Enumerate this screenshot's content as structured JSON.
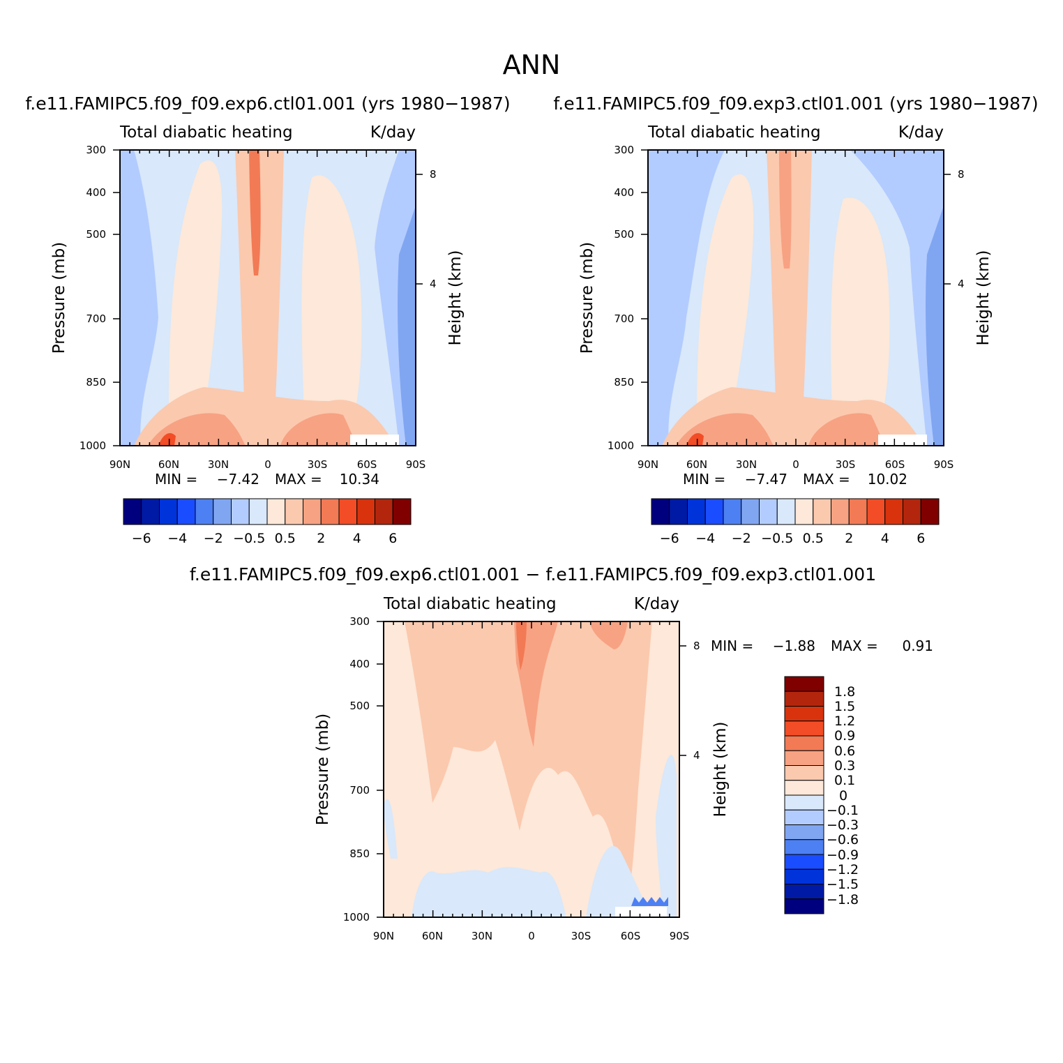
{
  "page_title": "ANN",
  "colors": {
    "panel_colorbar": [
      "#00007f",
      "#001aa6",
      "#0033d9",
      "#1a4dff",
      "#4d80f2",
      "#80a6f2",
      "#b3ccff",
      "#d9e8fa",
      "#fde8d9",
      "#fbc9ae",
      "#f7a283",
      "#f27a55",
      "#f24d26",
      "#d9330d",
      "#b3260d",
      "#800000"
    ],
    "diff_colorbar": [
      "#00007f",
      "#001aa6",
      "#0033d9",
      "#1a4dff",
      "#4d80f2",
      "#80a6f2",
      "#b3ccff",
      "#d9e8fa",
      "#fde8d9",
      "#fbc9ae",
      "#f7a283",
      "#f27a55",
      "#f24d26",
      "#d9330d",
      "#b3260d",
      "#800000"
    ]
  },
  "chart_data": [
    {
      "type": "heatmap",
      "title": "f.e11.FAMIPC5.f09_f09.exp6.ctl01.001 (yrs 1980−1987)",
      "subtitle_left": "Total diabatic heating",
      "subtitle_right": "K/day",
      "xlabel": "",
      "ylabel": "Pressure (mb)",
      "ylabel_right": "Height (km)",
      "x_ticks": [
        "90N",
        "60N",
        "30N",
        "0",
        "30S",
        "60S",
        "90S"
      ],
      "y_ticks": [
        "300",
        "400",
        "500",
        "700",
        "850",
        "1000"
      ],
      "y_ticks_right": [
        "8",
        "4"
      ],
      "min_label": "MIN =",
      "min_value": "−7.42",
      "max_label": "MAX =",
      "max_value": "10.34",
      "colorbar_labels": [
        "−6",
        "−4",
        "−2",
        "−0.5",
        "0.5",
        "2",
        "4",
        "6"
      ]
    },
    {
      "type": "heatmap",
      "title": "f.e11.FAMIPC5.f09_f09.exp3.ctl01.001 (yrs 1980−1987)",
      "subtitle_left": "Total diabatic heating",
      "subtitle_right": "K/day",
      "xlabel": "",
      "ylabel": "Pressure (mb)",
      "ylabel_right": "Height (km)",
      "x_ticks": [
        "90N",
        "60N",
        "30N",
        "0",
        "30S",
        "60S",
        "90S"
      ],
      "y_ticks": [
        "300",
        "400",
        "500",
        "700",
        "850",
        "1000"
      ],
      "y_ticks_right": [
        "8",
        "4"
      ],
      "min_label": "MIN =",
      "min_value": "−7.47",
      "max_label": "MAX =",
      "max_value": "10.02",
      "colorbar_labels": [
        "−6",
        "−4",
        "−2",
        "−0.5",
        "0.5",
        "2",
        "4",
        "6"
      ]
    },
    {
      "type": "heatmap",
      "title": "f.e11.FAMIPC5.f09_f09.exp6.ctl01.001 − f.e11.FAMIPC5.f09_f09.exp3.ctl01.001",
      "subtitle_left": "Total diabatic heating",
      "subtitle_right": "K/day",
      "xlabel": "",
      "ylabel": "Pressure (mb)",
      "ylabel_right": "Height (km)",
      "x_ticks": [
        "90N",
        "60N",
        "30N",
        "0",
        "30S",
        "60S",
        "90S"
      ],
      "y_ticks": [
        "300",
        "400",
        "500",
        "700",
        "850",
        "1000"
      ],
      "y_ticks_right": [
        "8",
        "4"
      ],
      "min_label": "MIN =",
      "min_value": "−1.88",
      "max_label": "MAX =",
      "max_value": "0.91",
      "colorbar_labels": [
        "1.8",
        "1.5",
        "1.2",
        "0.9",
        "0.6",
        "0.3",
        "0.1",
        "0",
        "−0.1",
        "−0.3",
        "−0.6",
        "−0.9",
        "−1.2",
        "−1.5",
        "−1.8"
      ]
    }
  ]
}
